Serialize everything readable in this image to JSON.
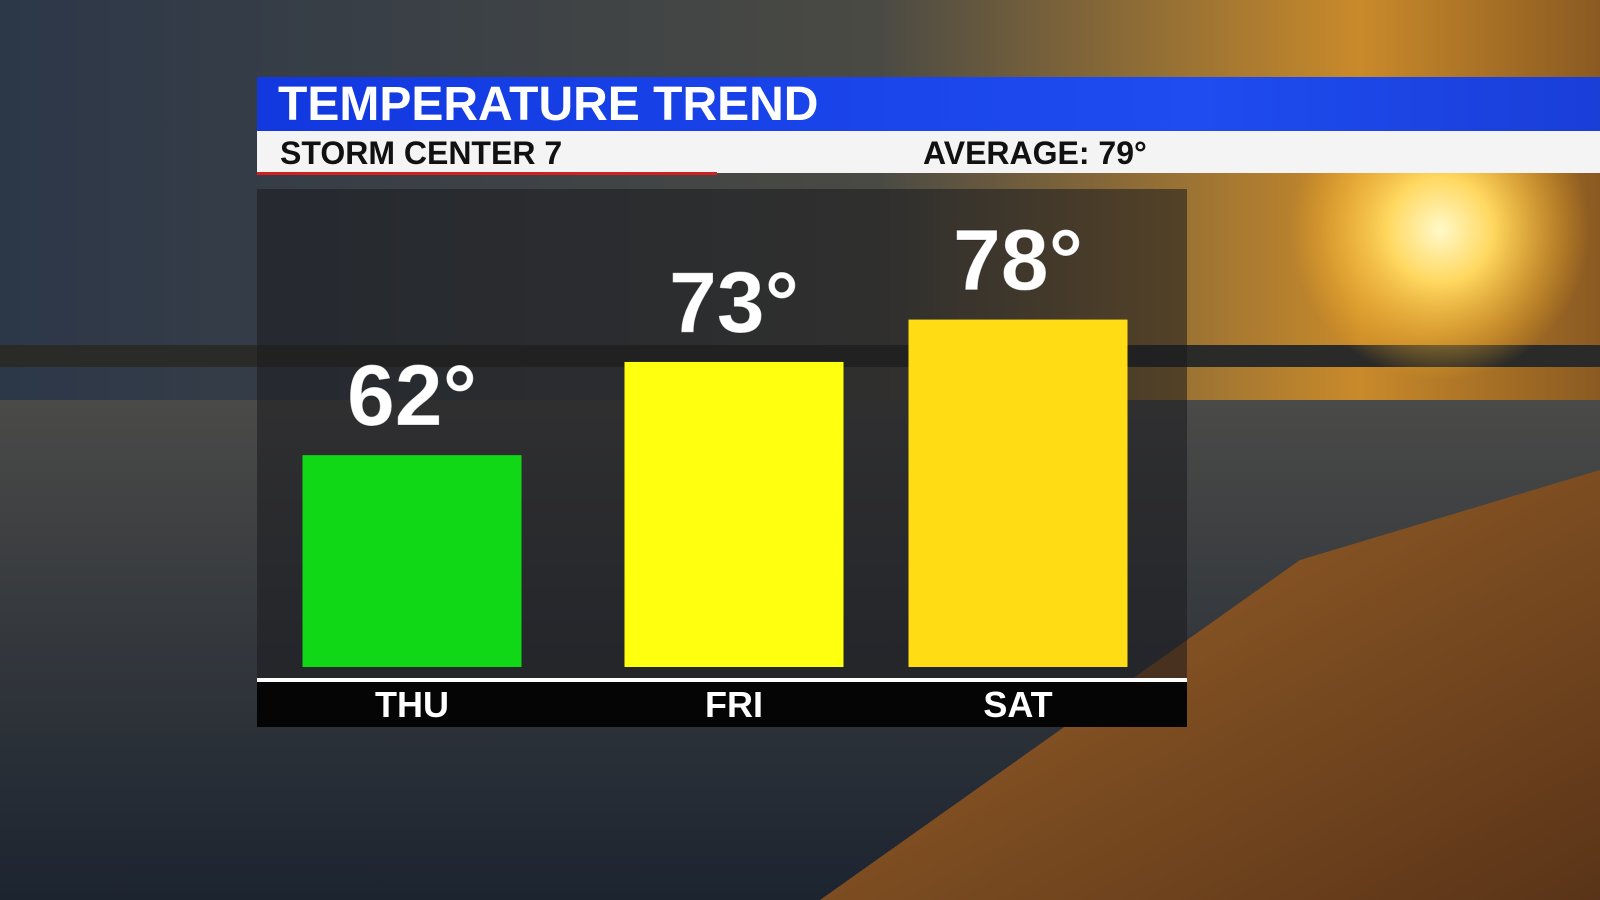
{
  "chart_data": {
    "type": "bar",
    "title": "TEMPERATURE TREND",
    "subtitle": "STORM CENTER 7",
    "annotation": "AVERAGE: 79°",
    "categories": [
      "THU",
      "FRI",
      "SAT"
    ],
    "values": [
      62,
      73,
      78
    ],
    "value_labels": [
      "62°",
      "73°",
      "78°"
    ],
    "colors": [
      "#10d816",
      "#ffff10",
      "#ffdc14"
    ],
    "ylim": [
      37,
      94
    ]
  }
}
